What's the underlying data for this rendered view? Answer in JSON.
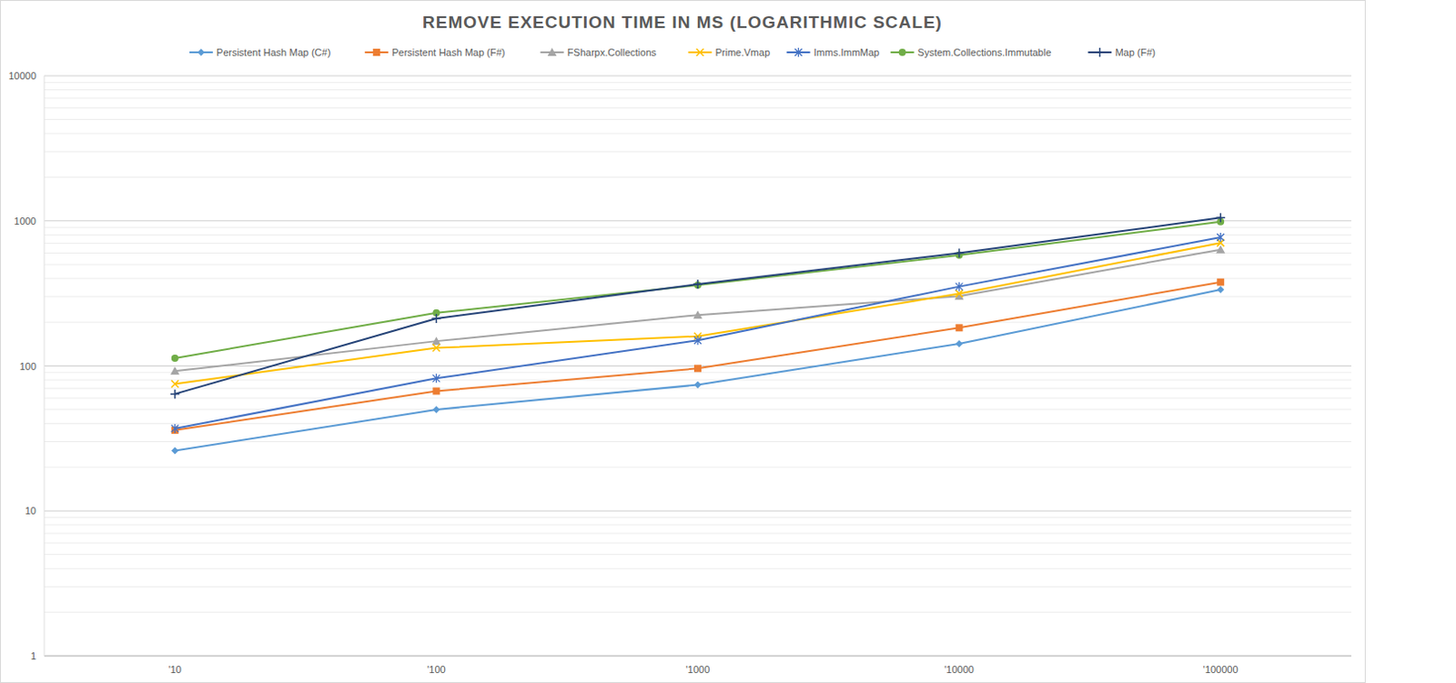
{
  "chart_data": {
    "type": "line",
    "title": "REMOVE EXECUTION TIME IN MS (LOGARITHMIC SCALE)",
    "categories": [
      "'10",
      "'100",
      "'1000",
      "'10000",
      "'100000"
    ],
    "log": "y",
    "grid": true,
    "legend": "top",
    "ylim": [
      1,
      10000
    ],
    "yticks": [
      1,
      10,
      100,
      1000,
      10000
    ],
    "series": [
      {
        "name": "Persistent Hash Map (C#)",
        "color": "#5b9bd5",
        "marker": "diamond",
        "values": [
          26,
          50,
          74,
          142,
          335
        ]
      },
      {
        "name": "Persistent Hash Map (F#)",
        "color": "#ed7d31",
        "marker": "square",
        "values": [
          36,
          67,
          96,
          183,
          378
        ]
      },
      {
        "name": "FSharpx.Collections",
        "color": "#a5a5a5",
        "marker": "triangle",
        "values": [
          92,
          148,
          224,
          302,
          633
        ]
      },
      {
        "name": "Prime.Vmap",
        "color": "#ffc000",
        "marker": "x",
        "values": [
          75,
          133,
          160,
          315,
          705
        ]
      },
      {
        "name": "Imms.ImmMap",
        "color": "#4472c4",
        "marker": "star",
        "values": [
          37,
          82,
          150,
          352,
          770
        ]
      },
      {
        "name": "System.Collections.Immutable",
        "color": "#70ad47",
        "marker": "circle",
        "values": [
          113,
          232,
          360,
          580,
          985
        ]
      },
      {
        "name": "Map (F#)",
        "color": "#264478",
        "marker": "plus",
        "values": [
          64,
          212,
          365,
          600,
          1050
        ]
      }
    ]
  }
}
